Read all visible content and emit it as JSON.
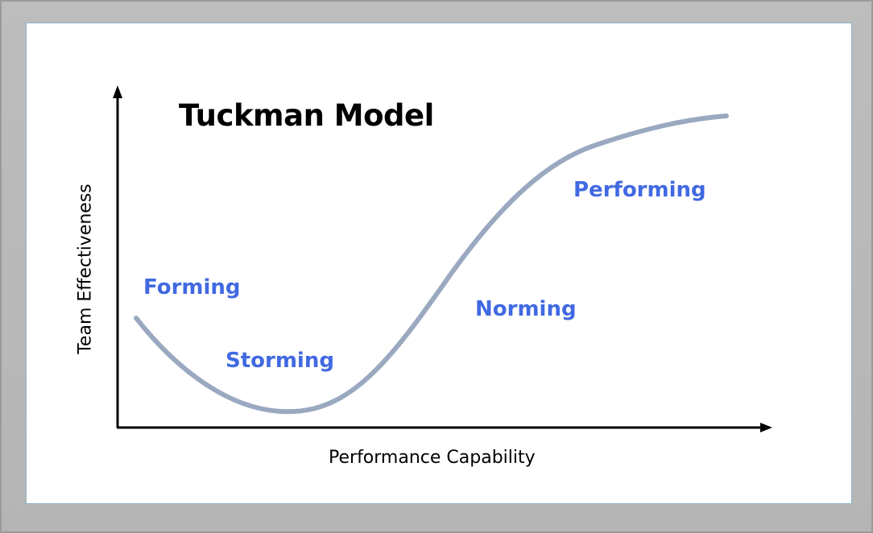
{
  "title": "Tuckman Model",
  "x_axis_label": "Performance Capability",
  "y_axis_label": "Team Effectiveness",
  "stages": {
    "forming": "Forming",
    "storming": "Storming",
    "norming": "Norming",
    "performing": "Performing"
  },
  "colors": {
    "curve": "#9aa9c0",
    "stage_label": "#4169e1",
    "axis": "#000000",
    "title": "#000000"
  }
}
